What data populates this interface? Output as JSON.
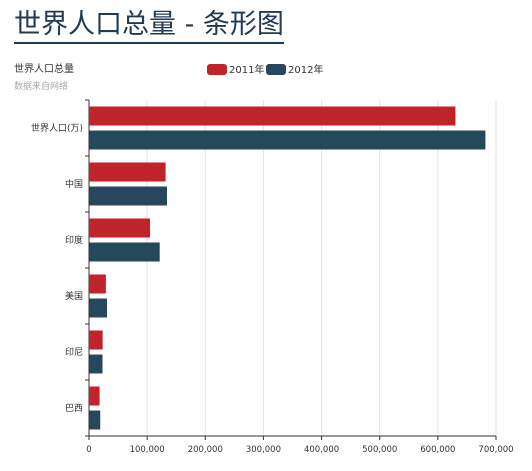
{
  "page": {
    "heading": "世界人口总量 - 条形图"
  },
  "chart_data": {
    "type": "bar",
    "orientation": "horizontal",
    "title": "世界人口总量",
    "subtitle": "数据来自网络",
    "categories": [
      "世界人口(万)",
      "中国",
      "印度",
      "美国",
      "印尼",
      "巴西"
    ],
    "series": [
      {
        "name": "2011年",
        "color": "#c1232b",
        "values": [
          630230,
          131744,
          104970,
          29034,
          23489,
          18203
        ]
      },
      {
        "name": "2012年",
        "color": "#27485c",
        "values": [
          681807,
          134141,
          121594,
          31000,
          23201,
          19325
        ]
      }
    ],
    "xlim": [
      0,
      700000
    ],
    "x_ticks": [
      0,
      100000,
      200000,
      300000,
      400000,
      500000,
      600000,
      700000
    ],
    "x_tick_labels": [
      "0",
      "100,000",
      "200,000",
      "300,000",
      "400,000",
      "500,000",
      "600,000",
      "700,000"
    ],
    "legend_position": "top-center",
    "grid": "vertical"
  }
}
